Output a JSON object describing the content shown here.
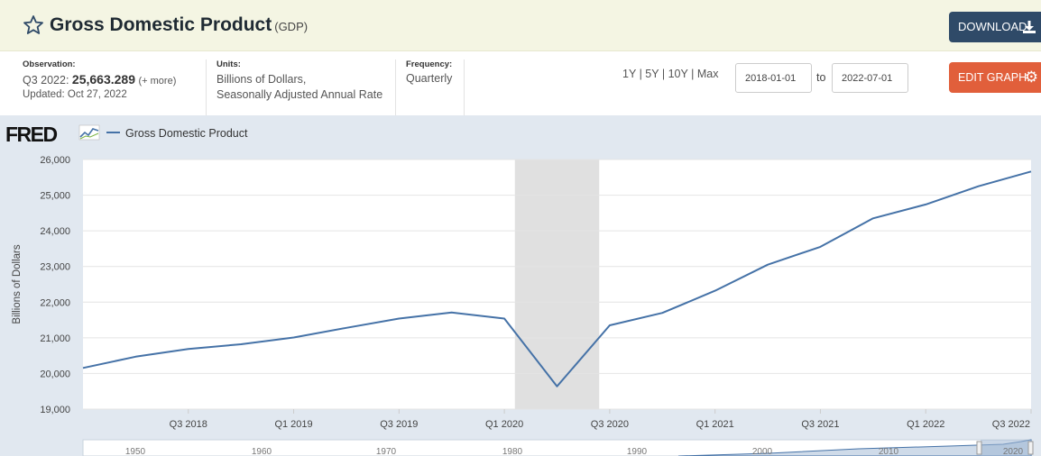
{
  "header": {
    "title": "Gross Domestic Product",
    "abbr": "(GDP)",
    "download_label": "DOWNLOAD"
  },
  "info": {
    "observation_label": "Observation:",
    "observation_period": "Q3 2022:",
    "observation_value": "25,663.289",
    "observation_more": "(+ more)",
    "updated": "Updated: Oct 27, 2022",
    "units_label": "Units:",
    "units_line1": "Billions of Dollars,",
    "units_line2": "Seasonally Adjusted Annual Rate",
    "frequency_label": "Frequency:",
    "frequency": "Quarterly"
  },
  "controls": {
    "range_1y": "1Y",
    "range_5y": "5Y",
    "range_10y": "10Y",
    "range_max": "Max",
    "range_sep": "|",
    "start_date": "2018-01-01",
    "to_label": "to",
    "end_date": "2022-07-01",
    "edit_label": "EDIT GRAPH"
  },
  "legend": {
    "logo": "FRED",
    "series_name": "Gross Domestic Product"
  },
  "colors": {
    "line": "#4572a7",
    "recession": "#e0e0e0",
    "download_bg": "#2f4a68",
    "edit_bg": "#e15f3b"
  },
  "chart_data": {
    "type": "line",
    "ylabel": "Billions of Dollars",
    "ylim": [
      19000,
      26000
    ],
    "yticks": [
      "19,000",
      "20,000",
      "21,000",
      "22,000",
      "23,000",
      "24,000",
      "25,000",
      "26,000"
    ],
    "ytick_values": [
      19000,
      20000,
      21000,
      22000,
      23000,
      24000,
      25000,
      26000
    ],
    "x_ticklabels": [
      "Q3 2018",
      "Q1 2019",
      "Q3 2019",
      "Q1 2020",
      "Q3 2020",
      "Q1 2021",
      "Q3 2021",
      "Q1 2022",
      "Q3 2022"
    ],
    "x_tick_quarters": [
      2,
      4,
      6,
      8,
      10,
      12,
      14,
      16,
      18
    ],
    "grid": true,
    "recession_quarters": [
      8.2,
      9.8
    ],
    "series": [
      {
        "name": "Gross Domestic Product",
        "x": [
          "2018 Q1",
          "2018 Q2",
          "2018 Q3",
          "2018 Q4",
          "2019 Q1",
          "2019 Q2",
          "2019 Q3",
          "2019 Q4",
          "2020 Q1",
          "2020 Q2",
          "2020 Q3",
          "2020 Q4",
          "2021 Q1",
          "2021 Q2",
          "2021 Q3",
          "2021 Q4",
          "2022 Q1",
          "2022 Q2",
          "2022 Q3"
        ],
        "values": [
          20155,
          20470,
          20688,
          20820,
          21010,
          21280,
          21540,
          21710,
          21540,
          19640,
          21350,
          21700,
          22320,
          23050,
          23550,
          24350,
          24740,
          25250,
          25663
        ]
      }
    ],
    "navigator_ticks": [
      "1950",
      "1960",
      "1970",
      "1980",
      "1990",
      "2000",
      "2010",
      "2020"
    ]
  }
}
